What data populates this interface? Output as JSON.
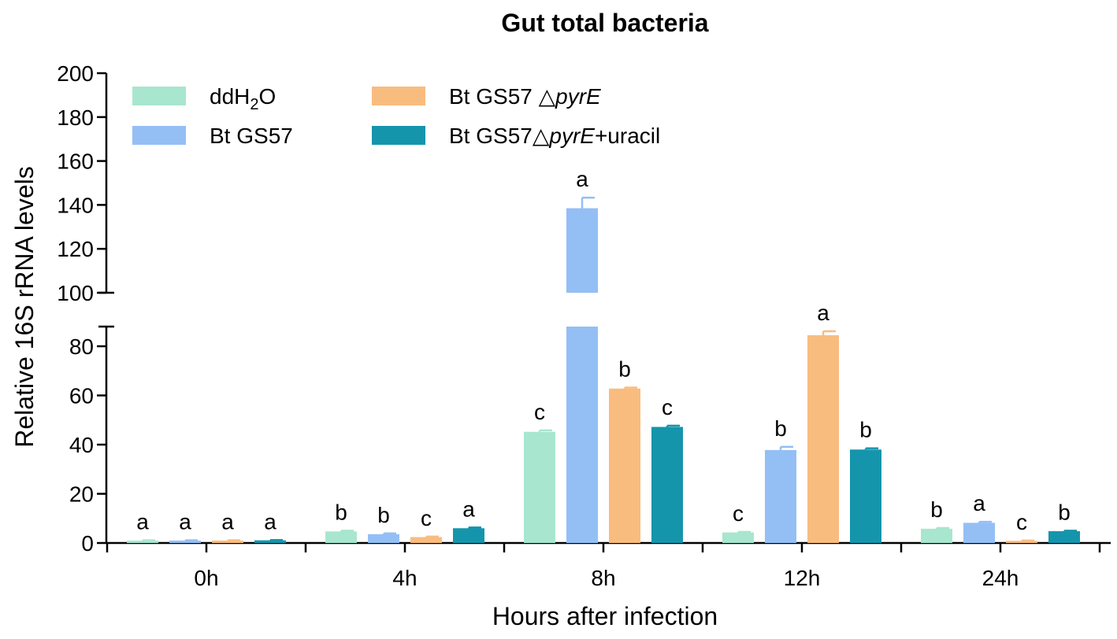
{
  "chart_data": {
    "type": "bar",
    "title": "Gut total bacteria",
    "xlabel": "Hours after infection",
    "ylabel": "Relative 16S rRNA  levels",
    "categories": [
      "0h",
      "4h",
      "8h",
      "12h",
      "24h"
    ],
    "y_axis": {
      "broken": true,
      "lower_segment": {
        "range": [
          0,
          88
        ],
        "ticks": [
          0,
          20,
          40,
          60,
          80
        ]
      },
      "upper_segment": {
        "range": [
          100,
          200
        ],
        "ticks": [
          100,
          120,
          140,
          160,
          180,
          200
        ]
      }
    },
    "legend_placement": "top-left",
    "series": [
      {
        "name": "ddH2O",
        "name_parts": {
          "pre": "ddH",
          "sub": "2",
          "post": "O"
        },
        "color": "#a8e6cf",
        "values": [
          1.0,
          4.7,
          45.2,
          4.3,
          5.8
        ],
        "errors": [
          0.1,
          0.3,
          0.6,
          0.2,
          0.3
        ],
        "labels": [
          "a",
          "b",
          "c",
          "c",
          "b"
        ]
      },
      {
        "name": "Bt GS57",
        "name_parts": {
          "pre": "Bt GS57",
          "italic": "",
          "post": ""
        },
        "color": "#94bff5",
        "values": [
          1.0,
          3.6,
          138.5,
          37.8,
          8.2
        ],
        "errors": [
          0.1,
          0.3,
          4.8,
          1.3,
          0.4
        ],
        "labels": [
          "a",
          "b",
          "a",
          "b",
          "a"
        ]
      },
      {
        "name": "Bt GS57 △pyrE",
        "name_parts": {
          "pre": "Bt GS57 △",
          "italic": "pyrE",
          "post": ""
        },
        "color": "#f9bc7f",
        "values": [
          1.0,
          2.4,
          62.8,
          84.5,
          0.9
        ],
        "errors": [
          0.1,
          0.2,
          0.4,
          1.6,
          0.1
        ],
        "labels": [
          "a",
          "c",
          "b",
          "a",
          "c"
        ]
      },
      {
        "name": "Bt GS57△pyrE+uracil",
        "name_parts": {
          "pre": "Bt GS57△",
          "italic": "pyrE",
          "post": "+uracil"
        },
        "color": "#1595ac",
        "values": [
          1.1,
          6.0,
          47.2,
          38.0,
          4.8
        ],
        "errors": [
          0.1,
          0.3,
          0.5,
          0.5,
          0.2
        ],
        "labels": [
          "a",
          "a",
          "c",
          "b",
          "b"
        ]
      }
    ]
  }
}
